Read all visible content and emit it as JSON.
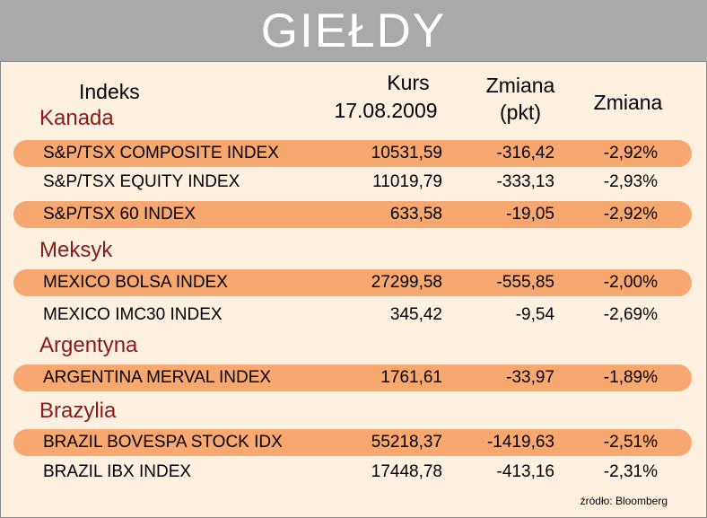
{
  "title": "GIEŁDY",
  "headers": {
    "index": "Indeks",
    "kurs_line1": "Kurs",
    "kurs_line2": "17.08.2009",
    "change_pts_line1": "Zmiana",
    "change_pts_line2": "(pkt)",
    "change_pct": "Zmiana"
  },
  "groups": [
    {
      "country": "Kanada",
      "rows": [
        {
          "name": "S&P/TSX COMPOSITE INDEX",
          "kurs": "10531,59",
          "pkt": "-316,42",
          "pct": "-2,92%",
          "highlight": true
        },
        {
          "name": "S&P/TSX EQUITY INDEX",
          "kurs": "11019,79",
          "pkt": "-333,13",
          "pct": "-2,93%",
          "highlight": false
        },
        {
          "name": "S&P/TSX 60 INDEX",
          "kurs": "633,58",
          "pkt": "-19,05",
          "pct": "-2,92%",
          "highlight": true
        }
      ]
    },
    {
      "country": "Meksyk",
      "rows": [
        {
          "name": "MEXICO BOLSA INDEX",
          "kurs": "27299,58",
          "pkt": "-555,85",
          "pct": "-2,00%",
          "highlight": true
        },
        {
          "name": "MEXICO IMC30 INDEX",
          "kurs": "345,42",
          "pkt": "-9,54",
          "pct": "-2,69%",
          "highlight": false
        }
      ]
    },
    {
      "country": "Argentyna",
      "rows": [
        {
          "name": "ARGENTINA MERVAL INDEX",
          "kurs": "1761,61",
          "pkt": "-33,97",
          "pct": "-1,89%",
          "highlight": true
        }
      ]
    },
    {
      "country": "Brazylia",
      "rows": [
        {
          "name": "BRAZIL BOVESPA STOCK IDX",
          "kurs": "55218,37",
          "pkt": "-1419,63",
          "pct": "-2,51%",
          "highlight": true
        },
        {
          "name": "BRAZIL IBX INDEX",
          "kurs": "17448,78",
          "pkt": "-413,16",
          "pct": "-2,31%",
          "highlight": false
        }
      ]
    }
  ],
  "source": "źródło: Bloomberg",
  "colors": {
    "background": "#fdf0e0",
    "title_bar": "#a9a9a9",
    "row_highlight": "#f7a870",
    "country_text": "#8b1a1a"
  }
}
